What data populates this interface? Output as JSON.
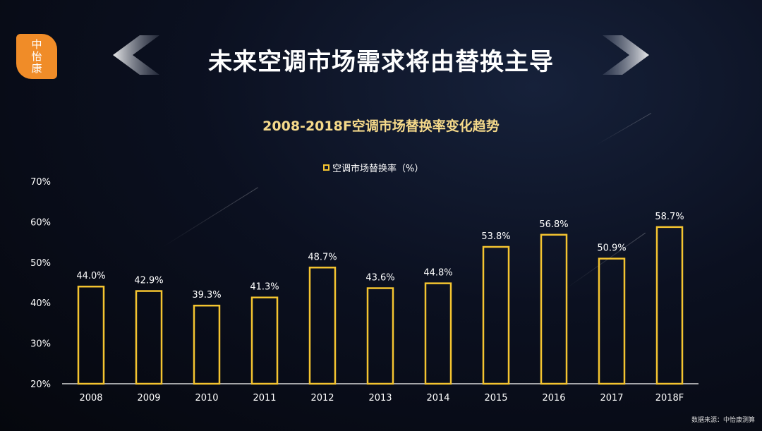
{
  "logo": {
    "chars": [
      "中",
      "怡",
      "康"
    ]
  },
  "header": {
    "title": "未来空调市场需求将由替换主导"
  },
  "source": "数据来源：中怡康测算",
  "chart_data": {
    "type": "bar",
    "title": "2008-2018F空调市场替换率变化趋势",
    "categories": [
      "2008",
      "2009",
      "2010",
      "2011",
      "2012",
      "2013",
      "2014",
      "2015",
      "2016",
      "2017",
      "2018F"
    ],
    "series": [
      {
        "name": "空调市场替换率（%）",
        "values": [
          44.0,
          42.9,
          39.3,
          41.3,
          48.7,
          43.6,
          44.8,
          53.8,
          56.8,
          50.9,
          58.7
        ],
        "labels": [
          "44.0%",
          "42.9%",
          "39.3%",
          "41.3%",
          "48.7%",
          "43.6%",
          "44.8%",
          "53.8%",
          "56.8%",
          "50.9%",
          "58.7%"
        ]
      }
    ],
    "ylim": [
      20,
      70
    ],
    "yticks": [
      "20%",
      "30%",
      "40%",
      "50%",
      "60%",
      "70%"
    ],
    "grid": false,
    "legend_position": "top-center",
    "bar_color": "#f4c430"
  }
}
